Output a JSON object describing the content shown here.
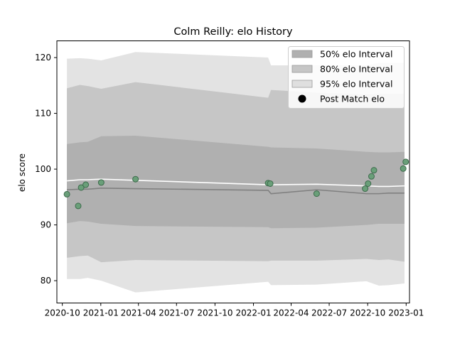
{
  "chart_data": {
    "type": "line",
    "title": "Colm Reilly: elo History",
    "xlabel": "",
    "ylabel": "elo score",
    "xlim": [
      "2020-09-18",
      "2023-01-09"
    ],
    "ylim": [
      76,
      123
    ],
    "x_ticks": [
      "2020-10",
      "2021-01",
      "2021-04",
      "2021-07",
      "2021-10",
      "2022-01",
      "2022-04",
      "2022-07",
      "2022-10",
      "2023-01"
    ],
    "y_ticks": [
      80,
      90,
      100,
      110,
      120
    ],
    "grid": false,
    "legend_position": "top-right",
    "legend": [
      {
        "label": "50% elo Interval",
        "kind": "patch",
        "color": "#b0b0b0"
      },
      {
        "label": "80% elo Interval",
        "kind": "patch",
        "color": "#c6c6c6"
      },
      {
        "label": "95% elo Interval",
        "kind": "patch",
        "color": "#dfdfdf"
      },
      {
        "label": "Post Match elo",
        "kind": "marker",
        "color": "#000000"
      }
    ],
    "colors": {
      "band50": "#b0b0b0",
      "band80": "#c6c6c6",
      "band95": "#e3e3e3",
      "median_line": "#808080",
      "mean_line": "#ffffff",
      "points_fill": "#6a9f79",
      "points_edge": "#3d6b4c"
    },
    "dates": [
      "2020-10-12",
      "2020-11-12",
      "2020-12-01",
      "2021-01-02",
      "2021-03-25",
      "2022-02-05",
      "2022-02-12",
      "2022-06-01",
      "2022-09-28",
      "2022-10-28",
      "2022-11-20",
      "2022-12-28"
    ],
    "bands": {
      "p95_low": [
        80.3,
        80.3,
        80.5,
        80.0,
        77.9,
        79.8,
        79.2,
        79.3,
        79.9,
        79.1,
        79.2,
        79.5
      ],
      "p95_high": [
        119.8,
        119.9,
        119.8,
        119.5,
        121.0,
        120.0,
        118.6,
        118.6,
        118.6,
        119.1,
        119.1,
        119.1
      ],
      "p80_low": [
        84.1,
        84.4,
        84.5,
        83.3,
        83.7,
        83.5,
        83.6,
        83.6,
        83.9,
        83.7,
        83.8,
        83.4
      ],
      "p80_high": [
        114.5,
        115.1,
        114.9,
        114.4,
        115.6,
        112.8,
        114.2,
        113.7,
        113.4,
        113.5,
        113.5,
        113.5
      ],
      "p25": [
        90.3,
        90.7,
        90.6,
        90.2,
        89.8,
        89.6,
        89.4,
        89.5,
        90.0,
        90.2,
        90.2,
        90.2
      ],
      "p75": [
        104.5,
        104.8,
        104.9,
        105.9,
        106.0,
        104.0,
        103.9,
        103.7,
        103.1,
        103.0,
        103.0,
        103.1
      ]
    },
    "series": [
      {
        "name": "median",
        "values": [
          96.3,
          96.4,
          96.4,
          96.6,
          96.5,
          96.2,
          95.6,
          96.3,
          95.6,
          95.6,
          95.7,
          95.7
        ]
      },
      {
        "name": "mean",
        "values": [
          97.9,
          98.1,
          98.1,
          98.2,
          98.0,
          97.2,
          97.2,
          97.3,
          97.0,
          96.9,
          96.9,
          97.0
        ]
      }
    ],
    "points": [
      {
        "date": "2020-10-12",
        "elo": 95.5
      },
      {
        "date": "2020-11-08",
        "elo": 93.4
      },
      {
        "date": "2020-11-15",
        "elo": 96.7
      },
      {
        "date": "2020-11-26",
        "elo": 97.2
      },
      {
        "date": "2021-01-02",
        "elo": 97.6
      },
      {
        "date": "2021-03-25",
        "elo": 98.2
      },
      {
        "date": "2022-02-05",
        "elo": 97.5
      },
      {
        "date": "2022-02-10",
        "elo": 97.4
      },
      {
        "date": "2022-06-01",
        "elo": 95.6
      },
      {
        "date": "2022-09-25",
        "elo": 96.5
      },
      {
        "date": "2022-10-02",
        "elo": 97.4
      },
      {
        "date": "2022-10-10",
        "elo": 98.7
      },
      {
        "date": "2022-10-16",
        "elo": 99.8
      },
      {
        "date": "2022-12-25",
        "elo": 100.1
      },
      {
        "date": "2022-12-31",
        "elo": 101.3
      }
    ]
  }
}
